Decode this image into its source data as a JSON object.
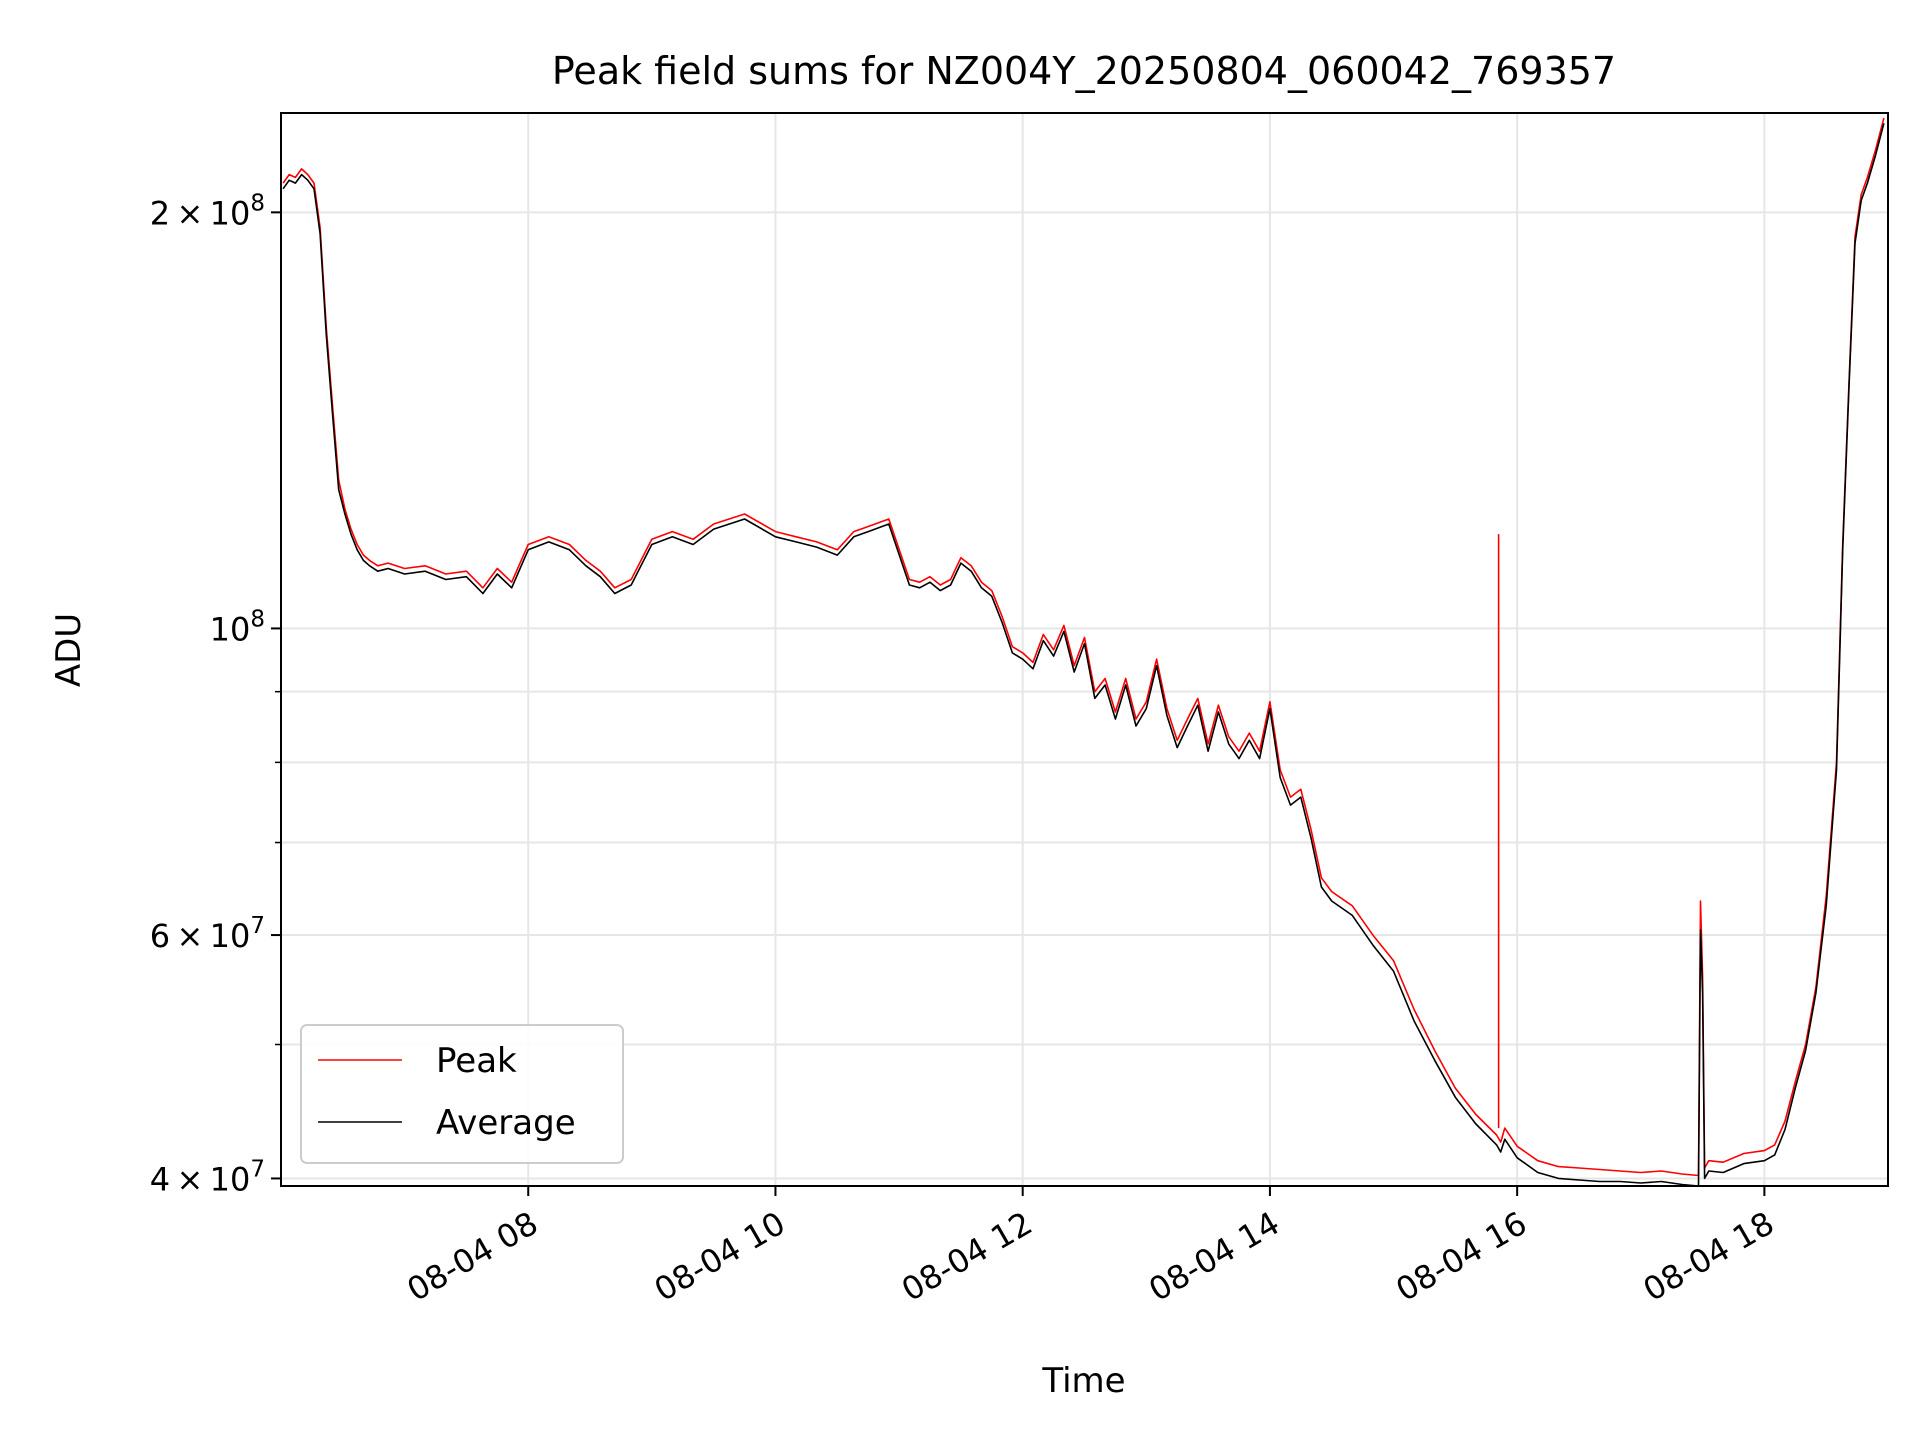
{
  "chart_data": {
    "type": "line",
    "title": "Peak field sums for NZ004Y_20250804_060042_769357",
    "xlabel": "Time",
    "ylabel": "ADU",
    "yscale": "log",
    "ylim": [
      39500000,
      236000000
    ],
    "xlim": [
      "2025-08-04 06:00",
      "2025-08-04 19:00"
    ],
    "grid": true,
    "legend": "lower-left",
    "x_ticks": [
      {
        "time": "2025-08-04 08:00",
        "label": "08-04 08"
      },
      {
        "time": "2025-08-04 10:00",
        "label": "08-04 10"
      },
      {
        "time": "2025-08-04 12:00",
        "label": "08-04 12"
      },
      {
        "time": "2025-08-04 14:00",
        "label": "08-04 14"
      },
      {
        "time": "2025-08-04 16:00",
        "label": "08-04 16"
      },
      {
        "time": "2025-08-04 18:00",
        "label": "08-04 18"
      }
    ],
    "y_ticks": [
      {
        "value": 40000000,
        "mantissa": "4",
        "exponent": "7"
      },
      {
        "value": 60000000,
        "mantissa": "6",
        "exponent": "7"
      },
      {
        "value": 100000000,
        "mantissa": "",
        "exponent": "8"
      },
      {
        "value": 200000000,
        "mantissa": "2",
        "exponent": "8"
      }
    ],
    "y_minor_ticks": [
      50000000,
      70000000,
      80000000,
      90000000
    ],
    "x_times": [
      "2025-08-04 06:01",
      "2025-08-04 06:04",
      "2025-08-04 06:07",
      "2025-08-04 06:10",
      "2025-08-04 06:13",
      "2025-08-04 06:16",
      "2025-08-04 06:19",
      "2025-08-04 06:22",
      "2025-08-04 06:25",
      "2025-08-04 06:28",
      "2025-08-04 06:31",
      "2025-08-04 06:34",
      "2025-08-04 06:37",
      "2025-08-04 06:40",
      "2025-08-04 06:43",
      "2025-08-04 06:47",
      "2025-08-04 06:52",
      "2025-08-04 07:00",
      "2025-08-04 07:10",
      "2025-08-04 07:20",
      "2025-08-04 07:30",
      "2025-08-04 07:38",
      "2025-08-04 07:45",
      "2025-08-04 07:52",
      "2025-08-04 08:00",
      "2025-08-04 08:10",
      "2025-08-04 08:20",
      "2025-08-04 08:28",
      "2025-08-04 08:35",
      "2025-08-04 08:42",
      "2025-08-04 08:50",
      "2025-08-04 09:00",
      "2025-08-04 09:10",
      "2025-08-04 09:20",
      "2025-08-04 09:30",
      "2025-08-04 09:45",
      "2025-08-04 10:00",
      "2025-08-04 10:10",
      "2025-08-04 10:20",
      "2025-08-04 10:30",
      "2025-08-04 10:38",
      "2025-08-04 10:45",
      "2025-08-04 10:55",
      "2025-08-04 11:05",
      "2025-08-04 11:10",
      "2025-08-04 11:15",
      "2025-08-04 11:20",
      "2025-08-04 11:25",
      "2025-08-04 11:30",
      "2025-08-04 11:35",
      "2025-08-04 11:40",
      "2025-08-04 11:45",
      "2025-08-04 11:50",
      "2025-08-04 11:55",
      "2025-08-04 12:00",
      "2025-08-04 12:05",
      "2025-08-04 12:10",
      "2025-08-04 12:15",
      "2025-08-04 12:20",
      "2025-08-04 12:25",
      "2025-08-04 12:30",
      "2025-08-04 12:35",
      "2025-08-04 12:40",
      "2025-08-04 12:45",
      "2025-08-04 12:50",
      "2025-08-04 12:55",
      "2025-08-04 13:00",
      "2025-08-04 13:05",
      "2025-08-04 13:10",
      "2025-08-04 13:15",
      "2025-08-04 13:20",
      "2025-08-04 13:25",
      "2025-08-04 13:30",
      "2025-08-04 13:35",
      "2025-08-04 13:40",
      "2025-08-04 13:45",
      "2025-08-04 13:50",
      "2025-08-04 13:55",
      "2025-08-04 14:00",
      "2025-08-04 14:05",
      "2025-08-04 14:10",
      "2025-08-04 14:15",
      "2025-08-04 14:20",
      "2025-08-04 14:25",
      "2025-08-04 14:30",
      "2025-08-04 14:40",
      "2025-08-04 14:50",
      "2025-08-04 15:00",
      "2025-08-04 15:10",
      "2025-08-04 15:20",
      "2025-08-04 15:30",
      "2025-08-04 15:40",
      "2025-08-04 15:50",
      "2025-08-04 15:52",
      "2025-08-04 15:54",
      "2025-08-04 16:00",
      "2025-08-04 16:10",
      "2025-08-04 16:20",
      "2025-08-04 16:30",
      "2025-08-04 16:40",
      "2025-08-04 16:50",
      "2025-08-04 17:00",
      "2025-08-04 17:10",
      "2025-08-04 17:20",
      "2025-08-04 17:28",
      "2025-08-04 17:29",
      "2025-08-04 17:30",
      "2025-08-04 17:31",
      "2025-08-04 17:33",
      "2025-08-04 17:40",
      "2025-08-04 17:50",
      "2025-08-04 18:00",
      "2025-08-04 18:05",
      "2025-08-04 18:10",
      "2025-08-04 18:15",
      "2025-08-04 18:20",
      "2025-08-04 18:25",
      "2025-08-04 18:30",
      "2025-08-04 18:35",
      "2025-08-04 18:38",
      "2025-08-04 18:41",
      "2025-08-04 18:44",
      "2025-08-04 18:47",
      "2025-08-04 18:50",
      "2025-08-04 18:54",
      "2025-08-04 18:58"
    ],
    "series": [
      {
        "name": "Peak",
        "color": "#ff0000",
        "values": [
          210000000,
          213000000,
          212000000,
          215000000,
          213000000,
          210000000,
          195000000,
          165000000,
          145000000,
          128000000,
          122000000,
          118000000,
          115000000,
          113000000,
          112000000,
          111000000,
          111500000,
          110500000,
          111000000,
          109500000,
          110000000,
          107000000,
          110500000,
          108000000,
          115000000,
          116500000,
          115000000,
          112000000,
          110000000,
          107000000,
          108500000,
          116000000,
          117500000,
          116000000,
          119000000,
          121000000,
          117500000,
          116500000,
          115500000,
          114000000,
          117500000,
          118500000,
          120000000,
          108500000,
          108000000,
          109000000,
          107500000,
          108500000,
          112500000,
          111000000,
          108000000,
          106500000,
          102000000,
          97000000,
          96000000,
          94500000,
          99000000,
          96500000,
          100500000,
          94000000,
          98500000,
          90000000,
          92000000,
          87000000,
          92000000,
          86000000,
          88500000,
          95000000,
          87500000,
          83000000,
          86000000,
          89000000,
          82500000,
          88000000,
          83500000,
          81500000,
          84000000,
          81500000,
          88500000,
          79000000,
          75500000,
          76500000,
          71500000,
          66000000,
          64500000,
          63000000,
          60000000,
          57500000,
          53000000,
          49500000,
          46500000,
          44500000,
          43000000,
          42500000,
          43500000,
          42200000,
          41200000,
          40800000,
          40700000,
          40600000,
          40500000,
          40400000,
          40500000,
          40300000,
          40200000,
          63500000,
          56000000,
          40700000,
          41200000,
          41100000,
          41700000,
          41900000,
          42300000,
          44000000,
          47000000,
          50000000,
          55000000,
          64000000,
          80000000,
          115000000,
          150000000,
          192000000,
          206000000,
          212000000,
          222000000,
          234000000
        ]
      },
      {
        "name": "Average",
        "color": "#000000",
        "values": [
          208000000,
          211000000,
          210000000,
          213000000,
          211000000,
          208000000,
          193000000,
          163000000,
          143000000,
          126000000,
          121000000,
          117000000,
          114000000,
          112000000,
          111000000,
          110000000,
          110500000,
          109500000,
          110000000,
          108500000,
          109000000,
          106000000,
          109500000,
          107000000,
          114000000,
          115500000,
          114000000,
          111000000,
          109000000,
          106000000,
          107500000,
          115000000,
          116500000,
          115000000,
          118000000,
          120000000,
          116500000,
          115500000,
          114500000,
          113000000,
          116500000,
          117500000,
          119000000,
          107500000,
          107000000,
          108000000,
          106500000,
          107500000,
          111500000,
          110000000,
          107000000,
          105500000,
          101000000,
          96000000,
          95000000,
          93500000,
          98000000,
          95500000,
          99500000,
          93000000,
          97500000,
          89000000,
          91000000,
          86000000,
          91000000,
          85000000,
          87500000,
          94000000,
          86500000,
          82000000,
          85000000,
          88000000,
          81500000,
          87000000,
          82500000,
          80500000,
          83000000,
          80500000,
          87500000,
          78000000,
          74500000,
          75500000,
          70500000,
          65000000,
          63500000,
          62000000,
          59000000,
          56500000,
          52000000,
          48700000,
          45800000,
          43800000,
          42300000,
          41800000,
          42700000,
          41400000,
          40400000,
          40000000,
          39900000,
          39800000,
          39800000,
          39700000,
          39800000,
          39600000,
          39500000,
          60500000,
          54500000,
          40000000,
          40500000,
          40400000,
          41000000,
          41200000,
          41600000,
          43400000,
          46500000,
          49500000,
          54500000,
          63000000,
          79000000,
          114000000,
          149000000,
          190000000,
          204000000,
          210000000,
          220000000,
          232000000
        ]
      }
    ],
    "spikes": [
      {
        "series": "Peak",
        "time": "2025-08-04 15:51",
        "value": 117000000,
        "baseline": 43500000
      }
    ]
  }
}
